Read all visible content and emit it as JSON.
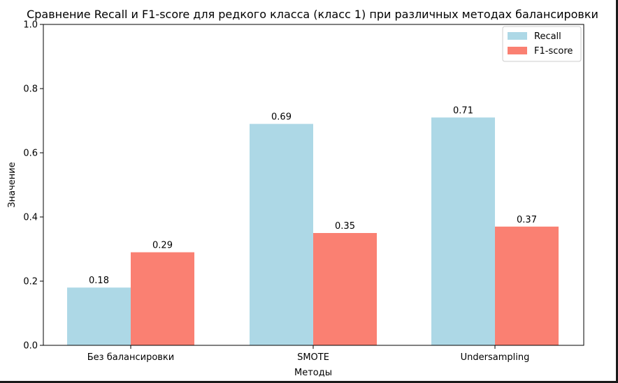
{
  "chart_data": {
    "type": "bar",
    "title": "Сравнение Recall и F1-score для редкого класса (класс 1) при различных методах балансировки",
    "xlabel": "Методы",
    "ylabel": "Значение",
    "categories": [
      "Без балансировки",
      "SMOTE",
      "Undersampling"
    ],
    "ylim": [
      0,
      1.0
    ],
    "yticks": [
      "0.0",
      "0.2",
      "0.4",
      "0.6",
      "0.8",
      "1.0"
    ],
    "grid": false,
    "legend_position": "top-right",
    "series": [
      {
        "name": "Recall",
        "color": "#add8e6",
        "values": [
          0.18,
          0.69,
          0.71
        ],
        "labels": [
          "0.18",
          "0.69",
          "0.71"
        ]
      },
      {
        "name": "F1-score",
        "color": "#fa8072",
        "values": [
          0.29,
          0.35,
          0.37
        ],
        "labels": [
          "0.29",
          "0.35",
          "0.37"
        ]
      }
    ]
  }
}
